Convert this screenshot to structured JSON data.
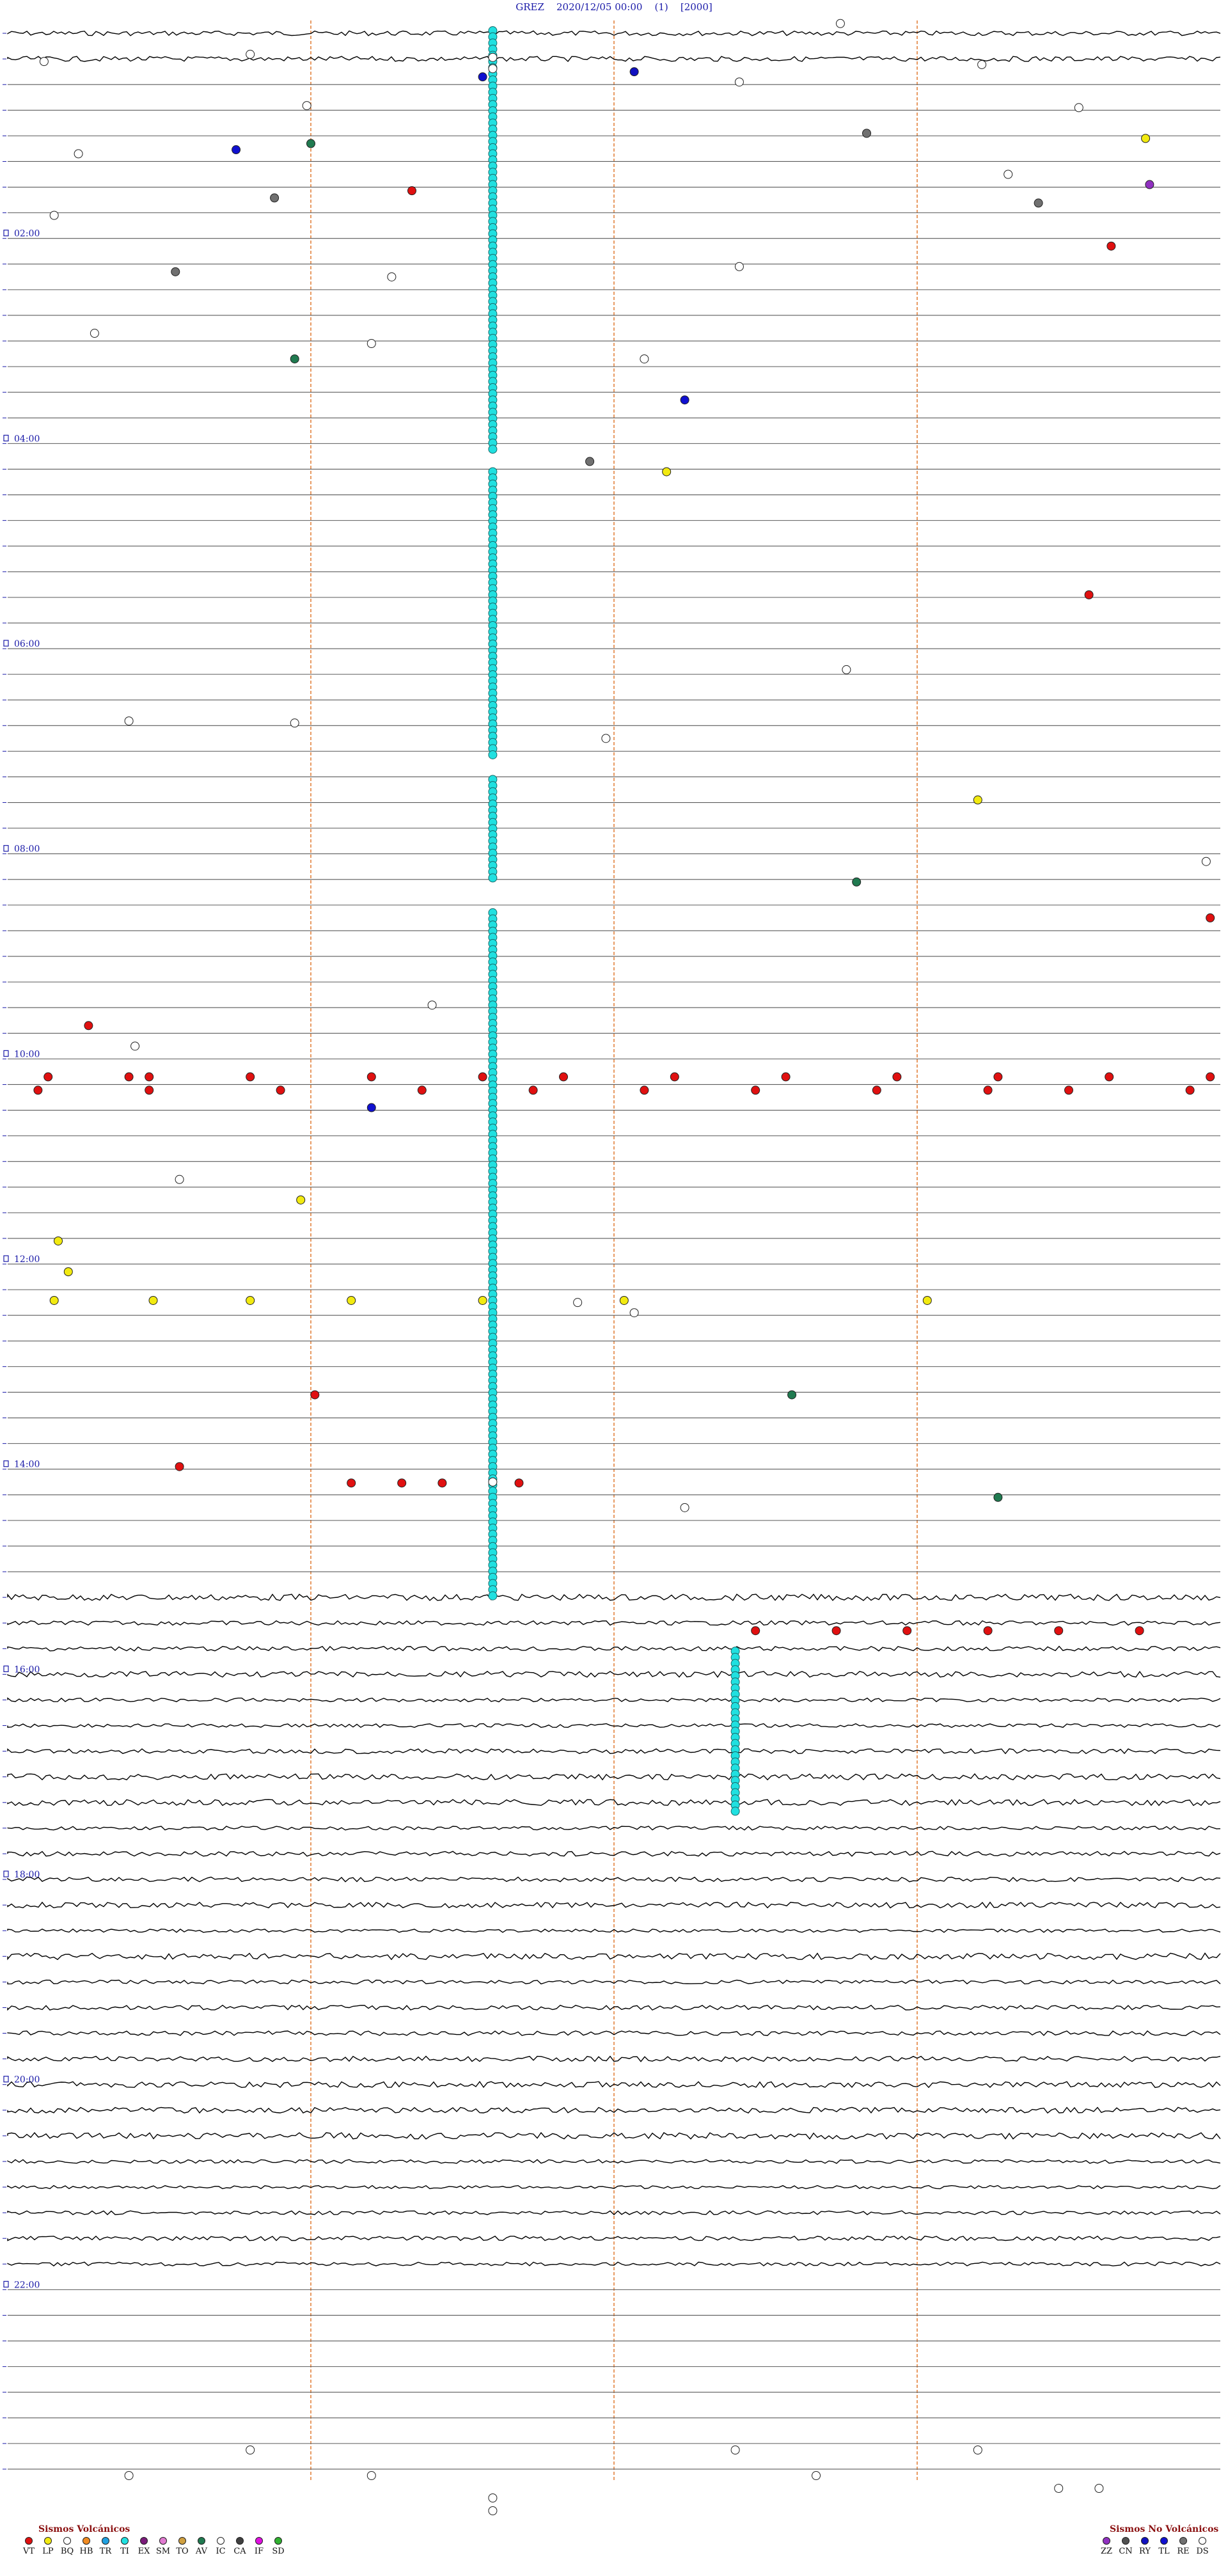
{
  "header": {
    "station": "GREZ",
    "datetime": "2020/12/05 00:00",
    "index": "(1)",
    "count": "[2000]"
  },
  "chart_data": {
    "type": "scatter",
    "title": "GREZ    2020/12/05 00:00    (1)    [2000]",
    "xlim": [
      0,
      60
    ],
    "ylim": [
      0,
      24
    ],
    "hour_labels": [
      "02:00",
      "04:00",
      "06:00",
      "08:00",
      "10:00",
      "12:00",
      "14:00",
      "16:00",
      "18:00",
      "20:00",
      "22:00"
    ],
    "colors": {
      "trace": "#000000",
      "line": "#5a5a5a",
      "marker_line": "#e07a30",
      "hour_label": "#1a1aa8",
      "tick": "#1a1aa8"
    },
    "events": [
      {
        "t": 0.03,
        "m": 41.2,
        "type": "IC"
      },
      {
        "t": 0.33,
        "m": 12.0,
        "type": "IC"
      },
      {
        "t": 0.36,
        "m": 24.0,
        "type": "IC"
      },
      {
        "t": 0.4,
        "m": 1.8,
        "type": "IC"
      },
      {
        "t": 0.43,
        "m": 48.2,
        "type": "IC"
      },
      {
        "t": 0.47,
        "m": 24.0,
        "type": "IC"
      },
      {
        "t": 0.5,
        "m": 31.0,
        "type": "RY"
      },
      {
        "t": 0.55,
        "m": 23.5,
        "type": "TL"
      },
      {
        "t": 0.6,
        "m": 36.2,
        "type": "IC"
      },
      {
        "t": 0.83,
        "m": 14.8,
        "type": "IC"
      },
      {
        "t": 0.85,
        "m": 53.0,
        "type": "IC"
      },
      {
        "t": 1.1,
        "m": 42.5,
        "type": "RE"
      },
      {
        "t": 1.15,
        "m": 56.3,
        "type": "LP"
      },
      {
        "t": 1.2,
        "m": 15.0,
        "type": "AV"
      },
      {
        "t": 1.26,
        "m": 11.3,
        "type": "TL"
      },
      {
        "t": 1.3,
        "m": 3.5,
        "type": "IC"
      },
      {
        "t": 1.5,
        "m": 49.5,
        "type": "IC"
      },
      {
        "t": 1.66,
        "m": 20.0,
        "type": "VT"
      },
      {
        "t": 1.6,
        "m": 56.5,
        "type": "ZZ"
      },
      {
        "t": 1.73,
        "m": 13.2,
        "type": "RE"
      },
      {
        "t": 1.78,
        "m": 51.0,
        "type": "RE"
      },
      {
        "t": 1.9,
        "m": 2.3,
        "type": "IC"
      },
      {
        "t": 2.2,
        "m": 54.6,
        "type": "VT"
      },
      {
        "t": 2.4,
        "m": 36.2,
        "type": "IC"
      },
      {
        "t": 2.45,
        "m": 8.3,
        "type": "RE"
      },
      {
        "t": 2.5,
        "m": 19.0,
        "type": "IC"
      },
      {
        "t": 3.05,
        "m": 4.3,
        "type": "IC"
      },
      {
        "t": 3.15,
        "m": 18.0,
        "type": "IC"
      },
      {
        "t": 3.3,
        "m": 14.2,
        "type": "AV"
      },
      {
        "t": 3.3,
        "m": 31.5,
        "type": "IC"
      },
      {
        "t": 3.7,
        "m": 33.5,
        "type": "TL"
      },
      {
        "t": 4.3,
        "m": 28.8,
        "type": "RE"
      },
      {
        "t": 4.4,
        "m": 32.6,
        "type": "LP"
      },
      {
        "t": 5.6,
        "m": 53.5,
        "type": "VT"
      },
      {
        "t": 6.33,
        "m": 41.5,
        "type": "IC"
      },
      {
        "t": 6.83,
        "m": 6.0,
        "type": "IC"
      },
      {
        "t": 6.85,
        "m": 14.2,
        "type": "IC"
      },
      {
        "t": 7.0,
        "m": 29.6,
        "type": "IC"
      },
      {
        "t": 7.6,
        "m": 48.0,
        "type": "LP"
      },
      {
        "t": 8.2,
        "m": 59.3,
        "type": "IC"
      },
      {
        "t": 8.4,
        "m": 42.0,
        "type": "AV"
      },
      {
        "t": 8.75,
        "m": 59.5,
        "type": "VT"
      },
      {
        "t": 9.6,
        "m": 21.0,
        "type": "IC"
      },
      {
        "t": 9.8,
        "m": 4.0,
        "type": "VT"
      },
      {
        "t": 10.0,
        "m": 6.3,
        "type": "IC"
      },
      {
        "t": 10.3,
        "m": 7.0,
        "type": "VT"
      },
      {
        "t": 10.6,
        "m": 18.0,
        "type": "TL"
      },
      {
        "t": 11.3,
        "m": 8.5,
        "type": "IC"
      },
      {
        "t": 11.5,
        "m": 14.5,
        "type": "LP"
      },
      {
        "t": 11.9,
        "m": 2.5,
        "type": "LP"
      },
      {
        "t": 12.2,
        "m": 3.0,
        "type": "LP"
      },
      {
        "t": 12.5,
        "m": 28.2,
        "type": "IC"
      },
      {
        "t": 12.6,
        "m": 31.0,
        "type": "IC"
      },
      {
        "t": 13.4,
        "m": 15.2,
        "type": "VT"
      },
      {
        "t": 13.4,
        "m": 38.8,
        "type": "AV"
      },
      {
        "t": 14.1,
        "m": 8.5,
        "type": "VT"
      },
      {
        "t": 14.25,
        "m": 24.0,
        "type": "IC"
      },
      {
        "t": 14.4,
        "m": 49.0,
        "type": "AV"
      },
      {
        "t": 14.5,
        "m": 33.5,
        "type": "IC"
      }
    ],
    "rows": [
      {
        "row": 10.3,
        "type": "VT",
        "m": [
          2.0,
          6.0,
          12.0,
          18.0,
          23.5,
          27.5,
          33.0,
          38.5,
          44.0,
          49.0,
          54.5,
          59.5
        ]
      },
      {
        "row": 10.43,
        "type": "VT",
        "m": [
          1.5,
          7.0,
          13.5,
          20.5,
          26.0,
          31.5,
          37.0,
          43.0,
          48.5,
          52.5,
          58.5
        ]
      },
      {
        "row": 12.48,
        "type": "LP",
        "m": [
          2.3,
          7.2,
          12.0,
          17.0,
          23.5,
          30.5,
          45.5
        ]
      },
      {
        "row": 14.26,
        "type": "VT",
        "m": [
          17.0,
          19.5,
          21.5,
          25.3
        ]
      },
      {
        "row": 15.7,
        "type": "VT",
        "m": [
          37.0,
          41.0,
          44.5,
          48.5,
          52.0,
          56.0
        ]
      }
    ]
  },
  "legend": {
    "volcanic_title": "Sismos Volcánicos",
    "non_volcanic_title": "Sismos No Volcánicos",
    "volcanic": [
      {
        "code": "VT",
        "color": "#e01010"
      },
      {
        "code": "LP",
        "color": "#f2ea10"
      },
      {
        "code": "BQ",
        "color": "#ffffff"
      },
      {
        "code": "HB",
        "color": "#f08a20"
      },
      {
        "code": "TR",
        "color": "#20a0e0"
      },
      {
        "code": "TI",
        "color": "#20e0e0"
      },
      {
        "code": "EX",
        "color": "#7a1a7a"
      },
      {
        "code": "SM",
        "color": "#e07ad0"
      },
      {
        "code": "TO",
        "color": "#d0a040"
      },
      {
        "code": "AV",
        "color": "#207a50"
      },
      {
        "code": "IC",
        "color": "#ffffff"
      },
      {
        "code": "CA",
        "color": "#404040"
      },
      {
        "code": "IF",
        "color": "#e010e0"
      },
      {
        "code": "SD",
        "color": "#30b030"
      }
    ],
    "non_volcanic": [
      {
        "code": "ZZ",
        "color": "#9030c0"
      },
      {
        "code": "CN",
        "color": "#505050"
      },
      {
        "code": "RY",
        "color": "#1010c0"
      },
      {
        "code": "TL",
        "color": "#1010d0"
      },
      {
        "code": "RE",
        "color": "#707070"
      },
      {
        "code": "DS",
        "color": "#ffffff"
      }
    ]
  }
}
